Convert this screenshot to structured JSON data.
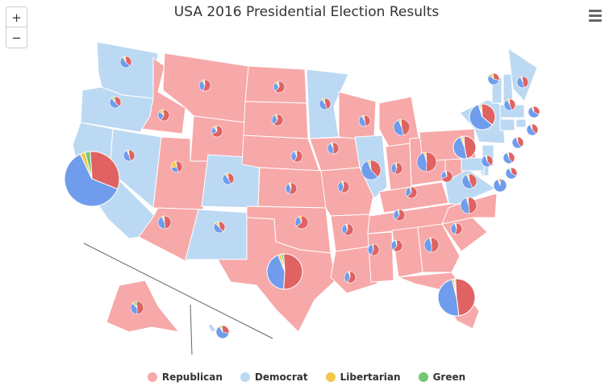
{
  "title": "USA 2016 Presidential Election Results",
  "zoom": {
    "in_label": "+",
    "out_label": "−"
  },
  "menu_icon": "hamburger-menu-icon",
  "colors": {
    "republican_fill": "#f7a8a8",
    "democrat_fill": "#bcd9f3",
    "state_border": "#ffffff",
    "pie_republican": "#e06262",
    "pie_democrat": "#6f9cec",
    "pie_libertarian": "#f2c94c",
    "pie_green": "#74c774"
  },
  "legend": [
    {
      "name": "Republican",
      "color": "#f7a8a8"
    },
    {
      "name": "Democrat",
      "color": "#bcd9f3"
    },
    {
      "name": "Libertarian",
      "color": "#f2c94c"
    },
    {
      "name": "Green",
      "color": "#74c774"
    }
  ],
  "chart_data": {
    "type": "map-pie",
    "series": [
      "Republican",
      "Democrat",
      "Libertarian",
      "Green"
    ],
    "states": [
      {
        "state": "Washington",
        "winner": "Democrat",
        "shares": [
          0.38,
          0.54,
          0.05,
          0.03
        ]
      },
      {
        "state": "Oregon",
        "winner": "Democrat",
        "shares": [
          0.39,
          0.5,
          0.05,
          0.06
        ]
      },
      {
        "state": "California",
        "winner": "Democrat",
        "shares": [
          0.32,
          0.62,
          0.03,
          0.03
        ]
      },
      {
        "state": "Nevada",
        "winner": "Democrat",
        "shares": [
          0.46,
          0.48,
          0.04,
          0.02
        ]
      },
      {
        "state": "Idaho",
        "winner": "Republican",
        "shares": [
          0.59,
          0.28,
          0.09,
          0.04
        ]
      },
      {
        "state": "Montana",
        "winner": "Republican",
        "shares": [
          0.56,
          0.36,
          0.06,
          0.02
        ]
      },
      {
        "state": "Wyoming",
        "winner": "Republican",
        "shares": [
          0.68,
          0.22,
          0.07,
          0.03
        ]
      },
      {
        "state": "Utah",
        "winner": "Republican",
        "shares": [
          0.46,
          0.27,
          0.24,
          0.03
        ]
      },
      {
        "state": "Arizona",
        "winner": "Republican",
        "shares": [
          0.49,
          0.45,
          0.04,
          0.02
        ]
      },
      {
        "state": "Colorado",
        "winner": "Democrat",
        "shares": [
          0.43,
          0.48,
          0.06,
          0.03
        ]
      },
      {
        "state": "New Mexico",
        "winner": "Democrat",
        "shares": [
          0.4,
          0.48,
          0.09,
          0.03
        ]
      },
      {
        "state": "North Dakota",
        "winner": "Republican",
        "shares": [
          0.63,
          0.27,
          0.07,
          0.03
        ]
      },
      {
        "state": "South Dakota",
        "winner": "Republican",
        "shares": [
          0.62,
          0.32,
          0.06,
          0.0
        ]
      },
      {
        "state": "Nebraska",
        "winner": "Republican",
        "shares": [
          0.59,
          0.34,
          0.05,
          0.02
        ]
      },
      {
        "state": "Kansas",
        "winner": "Republican",
        "shares": [
          0.57,
          0.36,
          0.05,
          0.02
        ]
      },
      {
        "state": "Oklahoma",
        "winner": "Republican",
        "shares": [
          0.65,
          0.29,
          0.06,
          0.0
        ]
      },
      {
        "state": "Texas",
        "winner": "Republican",
        "shares": [
          0.52,
          0.43,
          0.03,
          0.02
        ]
      },
      {
        "state": "Minnesota",
        "winner": "Democrat",
        "shares": [
          0.45,
          0.46,
          0.05,
          0.04
        ]
      },
      {
        "state": "Iowa",
        "winner": "Republican",
        "shares": [
          0.51,
          0.42,
          0.04,
          0.03
        ]
      },
      {
        "state": "Missouri",
        "winner": "Republican",
        "shares": [
          0.57,
          0.38,
          0.04,
          0.01
        ]
      },
      {
        "state": "Arkansas",
        "winner": "Republican",
        "shares": [
          0.61,
          0.34,
          0.03,
          0.02
        ]
      },
      {
        "state": "Louisiana",
        "winner": "Republican",
        "shares": [
          0.58,
          0.38,
          0.03,
          0.01
        ]
      },
      {
        "state": "Wisconsin",
        "winner": "Republican",
        "shares": [
          0.47,
          0.46,
          0.04,
          0.03
        ]
      },
      {
        "state": "Illinois",
        "winner": "Democrat",
        "shares": [
          0.39,
          0.56,
          0.03,
          0.02
        ]
      },
      {
        "state": "Michigan",
        "winner": "Republican",
        "shares": [
          0.47,
          0.47,
          0.04,
          0.02
        ]
      },
      {
        "state": "Indiana",
        "winner": "Republican",
        "shares": [
          0.57,
          0.38,
          0.05,
          0.0
        ]
      },
      {
        "state": "Ohio",
        "winner": "Republican",
        "shares": [
          0.52,
          0.44,
          0.03,
          0.01
        ]
      },
      {
        "state": "Kentucky",
        "winner": "Republican",
        "shares": [
          0.63,
          0.33,
          0.03,
          0.01
        ]
      },
      {
        "state": "Tennessee",
        "winner": "Republican",
        "shares": [
          0.61,
          0.35,
          0.03,
          0.01
        ]
      },
      {
        "state": "Mississippi",
        "winner": "Republican",
        "shares": [
          0.58,
          0.4,
          0.01,
          0.01
        ]
      },
      {
        "state": "Alabama",
        "winner": "Republican",
        "shares": [
          0.62,
          0.35,
          0.02,
          0.01
        ]
      },
      {
        "state": "Georgia",
        "winner": "Republican",
        "shares": [
          0.51,
          0.46,
          0.03,
          0.0
        ]
      },
      {
        "state": "Florida",
        "winner": "Republican",
        "shares": [
          0.49,
          0.48,
          0.02,
          0.01
        ]
      },
      {
        "state": "South Carolina",
        "winner": "Republican",
        "shares": [
          0.55,
          0.41,
          0.03,
          0.01
        ]
      },
      {
        "state": "North Carolina",
        "winner": "Republican",
        "shares": [
          0.5,
          0.46,
          0.03,
          0.01
        ]
      },
      {
        "state": "Virginia",
        "winner": "Democrat",
        "shares": [
          0.44,
          0.5,
          0.04,
          0.02
        ]
      },
      {
        "state": "West Virginia",
        "winner": "Republican",
        "shares": [
          0.69,
          0.27,
          0.03,
          0.01
        ]
      },
      {
        "state": "Pennsylvania",
        "winner": "Republican",
        "shares": [
          0.48,
          0.47,
          0.03,
          0.02
        ]
      },
      {
        "state": "New York",
        "winner": "Democrat",
        "shares": [
          0.37,
          0.59,
          0.02,
          0.02
        ]
      },
      {
        "state": "Vermont",
        "winner": "Democrat",
        "shares": [
          0.3,
          0.57,
          0.09,
          0.04
        ]
      },
      {
        "state": "New Hampshire",
        "winner": "Democrat",
        "shares": [
          0.47,
          0.47,
          0.05,
          0.01
        ]
      },
      {
        "state": "Maine",
        "winner": "Democrat",
        "shares": [
          0.45,
          0.48,
          0.05,
          0.02
        ]
      },
      {
        "state": "Massachusetts",
        "winner": "Democrat",
        "shares": [
          0.33,
          0.6,
          0.04,
          0.03
        ]
      },
      {
        "state": "Rhode Island",
        "winner": "Democrat",
        "shares": [
          0.39,
          0.55,
          0.04,
          0.02
        ]
      },
      {
        "state": "Connecticut",
        "winner": "Democrat",
        "shares": [
          0.41,
          0.55,
          0.03,
          0.01
        ]
      },
      {
        "state": "New Jersey",
        "winner": "Democrat",
        "shares": [
          0.41,
          0.55,
          0.02,
          0.02
        ]
      },
      {
        "state": "Delaware",
        "winner": "Democrat",
        "shares": [
          0.42,
          0.53,
          0.03,
          0.02
        ]
      },
      {
        "state": "Maryland",
        "winner": "Democrat",
        "shares": [
          0.34,
          0.6,
          0.03,
          0.03
        ]
      },
      {
        "state": "District of Columbia",
        "winner": "Democrat",
        "shares": [
          0.04,
          0.91,
          0.02,
          0.03
        ]
      },
      {
        "state": "Alaska",
        "winner": "Republican",
        "shares": [
          0.51,
          0.37,
          0.06,
          0.06
        ]
      },
      {
        "state": "Hawaii",
        "winner": "Democrat",
        "shares": [
          0.3,
          0.62,
          0.04,
          0.04
        ]
      }
    ]
  }
}
